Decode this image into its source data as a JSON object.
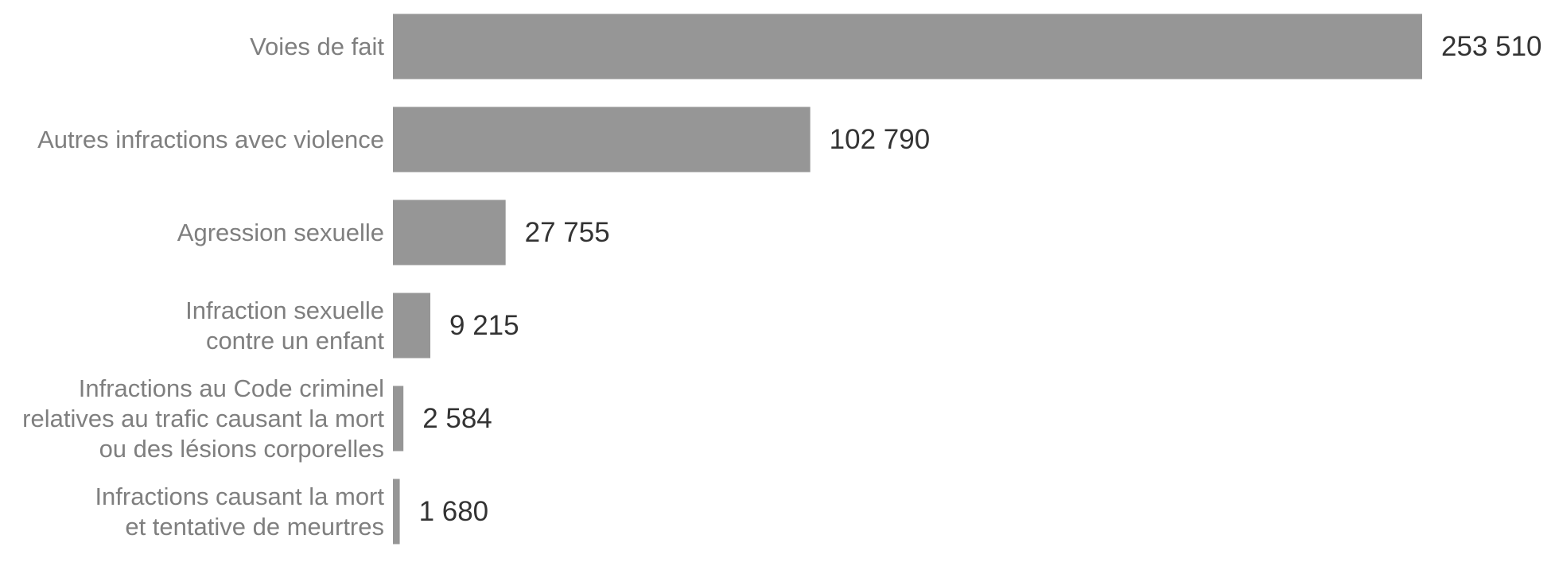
{
  "chart_data": {
    "type": "barh",
    "categories": [
      "Voies de fait",
      "Autres infractions avec violence",
      "Agression sexuelle",
      "Infraction sexuelle\ncontre un enfant",
      "Infractions au Code criminel\nrelatives au trafic causant la mort\nou des lésions corporelles",
      "Infractions causant la mort\net tentative de meurtres"
    ],
    "values": [
      253510,
      102790,
      27755,
      9215,
      2584,
      1680
    ],
    "value_labels": [
      "253 510",
      "102 790",
      "27 755",
      "9 215",
      "2 584",
      "1 680"
    ],
    "color": "#969696"
  }
}
